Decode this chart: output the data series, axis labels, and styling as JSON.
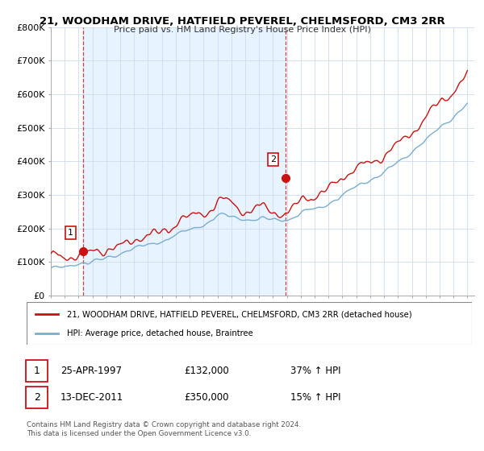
{
  "title": "21, WOODHAM DRIVE, HATFIELD PEVEREL, CHELMSFORD, CM3 2RR",
  "subtitle": "Price paid vs. HM Land Registry's House Price Index (HPI)",
  "sale1_year": 1997.33,
  "sale1_price": 132000,
  "sale2_year": 2011.92,
  "sale2_price": 350000,
  "sale1_display": "25-APR-1997",
  "sale2_display": "13-DEC-2011",
  "sale1_pct": "37% ↑ HPI",
  "sale2_pct": "15% ↑ HPI",
  "hpi_color": "#7aadcf",
  "price_color": "#cc1111",
  "vline_color": "#cc1111",
  "bg_band_color": "#ddeeff",
  "ylim": [
    0,
    800000
  ],
  "xmin": 1995,
  "xmax": 2025.5,
  "legend_line1": "21, WOODHAM DRIVE, HATFIELD PEVEREL, CHELMSFORD, CM3 2RR (detached house)",
  "legend_line2": "HPI: Average price, detached house, Braintree",
  "footer": "Contains HM Land Registry data © Crown copyright and database right 2024.\nThis data is licensed under the Open Government Licence v3.0."
}
